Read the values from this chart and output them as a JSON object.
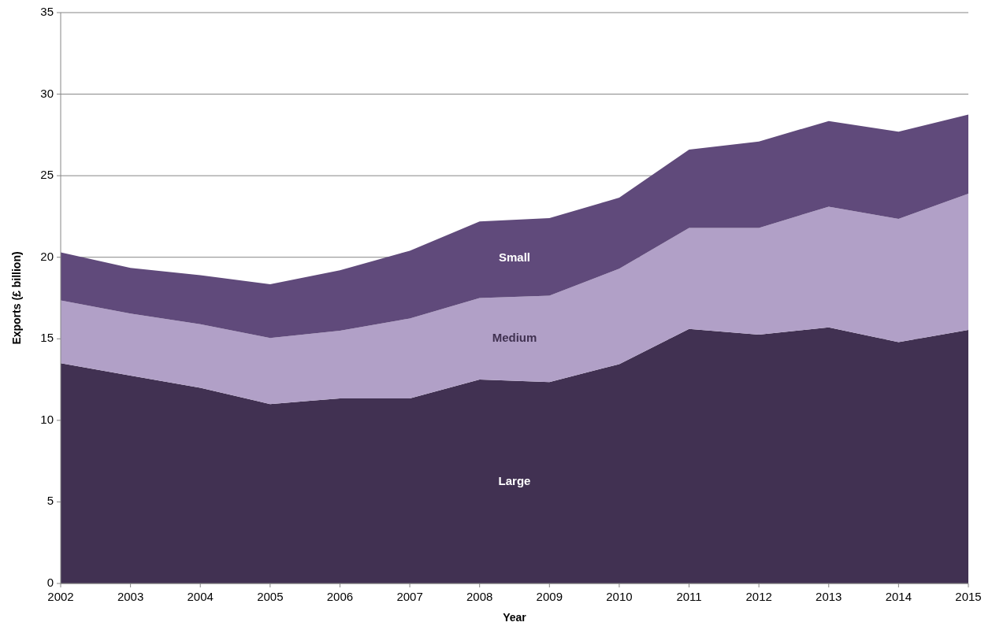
{
  "chart_data": {
    "type": "area",
    "stacked": true,
    "xlabel": "Year",
    "ylabel": "Exports (£ billion)",
    "x": [
      2002,
      2003,
      2004,
      2005,
      2006,
      2007,
      2008,
      2009,
      2010,
      2011,
      2012,
      2013,
      2014,
      2015
    ],
    "xlim": [
      2002,
      2015
    ],
    "xticks": [
      2002,
      2003,
      2004,
      2005,
      2006,
      2007,
      2008,
      2009,
      2010,
      2011,
      2012,
      2013,
      2014,
      2015
    ],
    "ylim": [
      0,
      35
    ],
    "yticks": [
      0,
      5,
      10,
      15,
      20,
      25,
      30,
      35
    ],
    "grid": "y",
    "series": [
      {
        "name": "Large",
        "color": "#413152",
        "values": [
          13.5,
          12.75,
          12.0,
          11.0,
          11.35,
          11.35,
          12.5,
          12.35,
          13.45,
          15.6,
          15.25,
          15.7,
          14.8,
          15.55
        ]
      },
      {
        "name": "Medium",
        "color": "#b1a0c7",
        "values": [
          3.85,
          3.8,
          3.9,
          4.05,
          4.15,
          4.9,
          5.0,
          5.3,
          5.85,
          6.2,
          6.55,
          7.4,
          7.55,
          8.35
        ]
      },
      {
        "name": "Small",
        "color": "#604a7b",
        "values": [
          2.95,
          2.8,
          3.0,
          3.3,
          3.7,
          4.15,
          4.7,
          4.75,
          4.35,
          4.8,
          5.3,
          5.25,
          5.35,
          4.85
        ]
      }
    ]
  }
}
